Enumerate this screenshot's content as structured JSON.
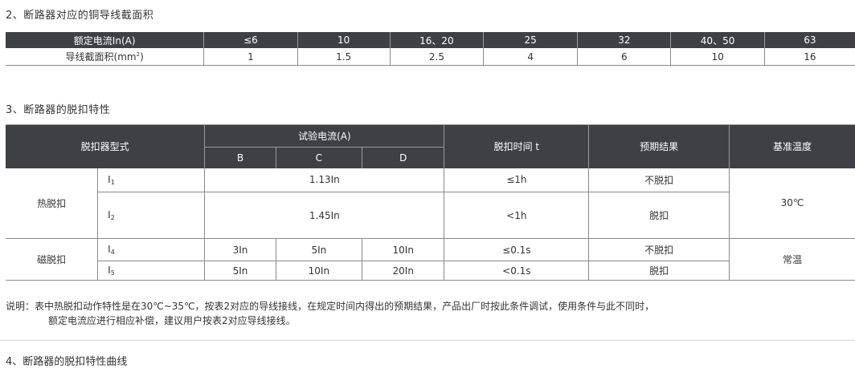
{
  "section2": {
    "title": "2、断路器对应的铜导线截面积",
    "header": [
      "额定电流In(A)",
      "≤6",
      "10",
      "16、20",
      "25",
      "32",
      "40、50",
      "63"
    ],
    "row_label": "导线截面积(mm",
    "row_label_sup": "2",
    "row_label_close": ")",
    "values": [
      "1",
      "1.5",
      "2.5",
      "4",
      "6",
      "10",
      "16"
    ]
  },
  "section3": {
    "title": "3、断路器的脱扣特性",
    "headers": {
      "type": "脱扣器型式",
      "test_current": "试验电流(A)",
      "b": "B",
      "c": "C",
      "d": "D",
      "trip_time": "脱扣时间 t",
      "expected": "预期结果",
      "ref_temp": "基准温度"
    },
    "thermal": {
      "label": "热脱扣",
      "temp": "30℃",
      "rows": [
        {
          "sub": "I",
          "idx": "1",
          "current": "1.13In",
          "time": "≤1h",
          "result": "不脱扣"
        },
        {
          "sub": "I",
          "idx": "2",
          "current": "1.45In",
          "time": "<1h",
          "result": "脱扣"
        }
      ]
    },
    "magnetic": {
      "label": "磁脱扣",
      "temp": "常温",
      "rows": [
        {
          "sub": "I",
          "idx": "4",
          "b": "3In",
          "c": "5In",
          "d": "10In",
          "time": "≤0.1s",
          "result": "不脱扣"
        },
        {
          "sub": "I",
          "idx": "5",
          "b": "5In",
          "c": "10In",
          "d": "20In",
          "time": "<0.1s",
          "result": "脱扣"
        }
      ]
    }
  },
  "note": {
    "line1": "说明：表中热脱扣动作特性是在30℃~35℃，按表2对应的导线接线，在规定时间内得出的预期结果，产品出厂时按此条件调试，使用条件与此不同时，",
    "line2": "额定电流应进行相应补偿，建议用户按表2对应导线接线。"
  },
  "next_section_title": "4、断路器的脱扣特性曲线"
}
